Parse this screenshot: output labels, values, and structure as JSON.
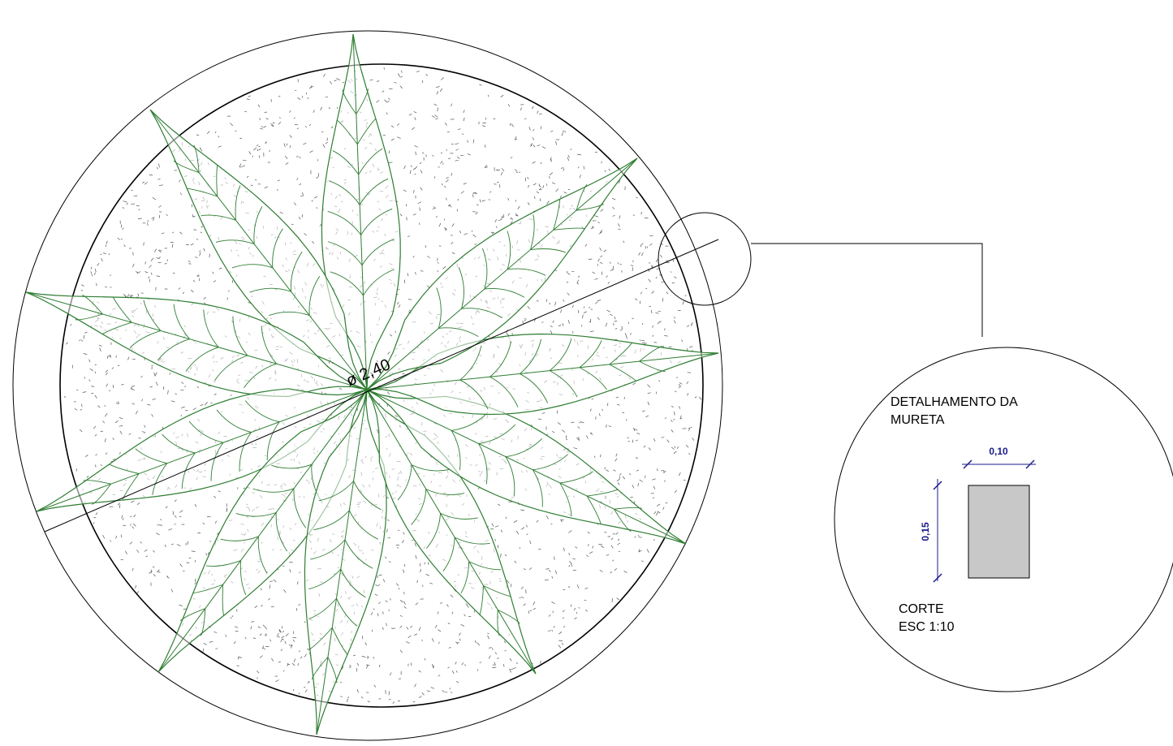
{
  "plan": {
    "diameter_label": "ø 2,40"
  },
  "detail": {
    "title_lines": [
      "DETALHAMENTO DA",
      "MURETA"
    ],
    "width_label": "0,10",
    "height_label": "0,15",
    "caption_lines": [
      "CORTE",
      "ESC 1:10"
    ]
  }
}
